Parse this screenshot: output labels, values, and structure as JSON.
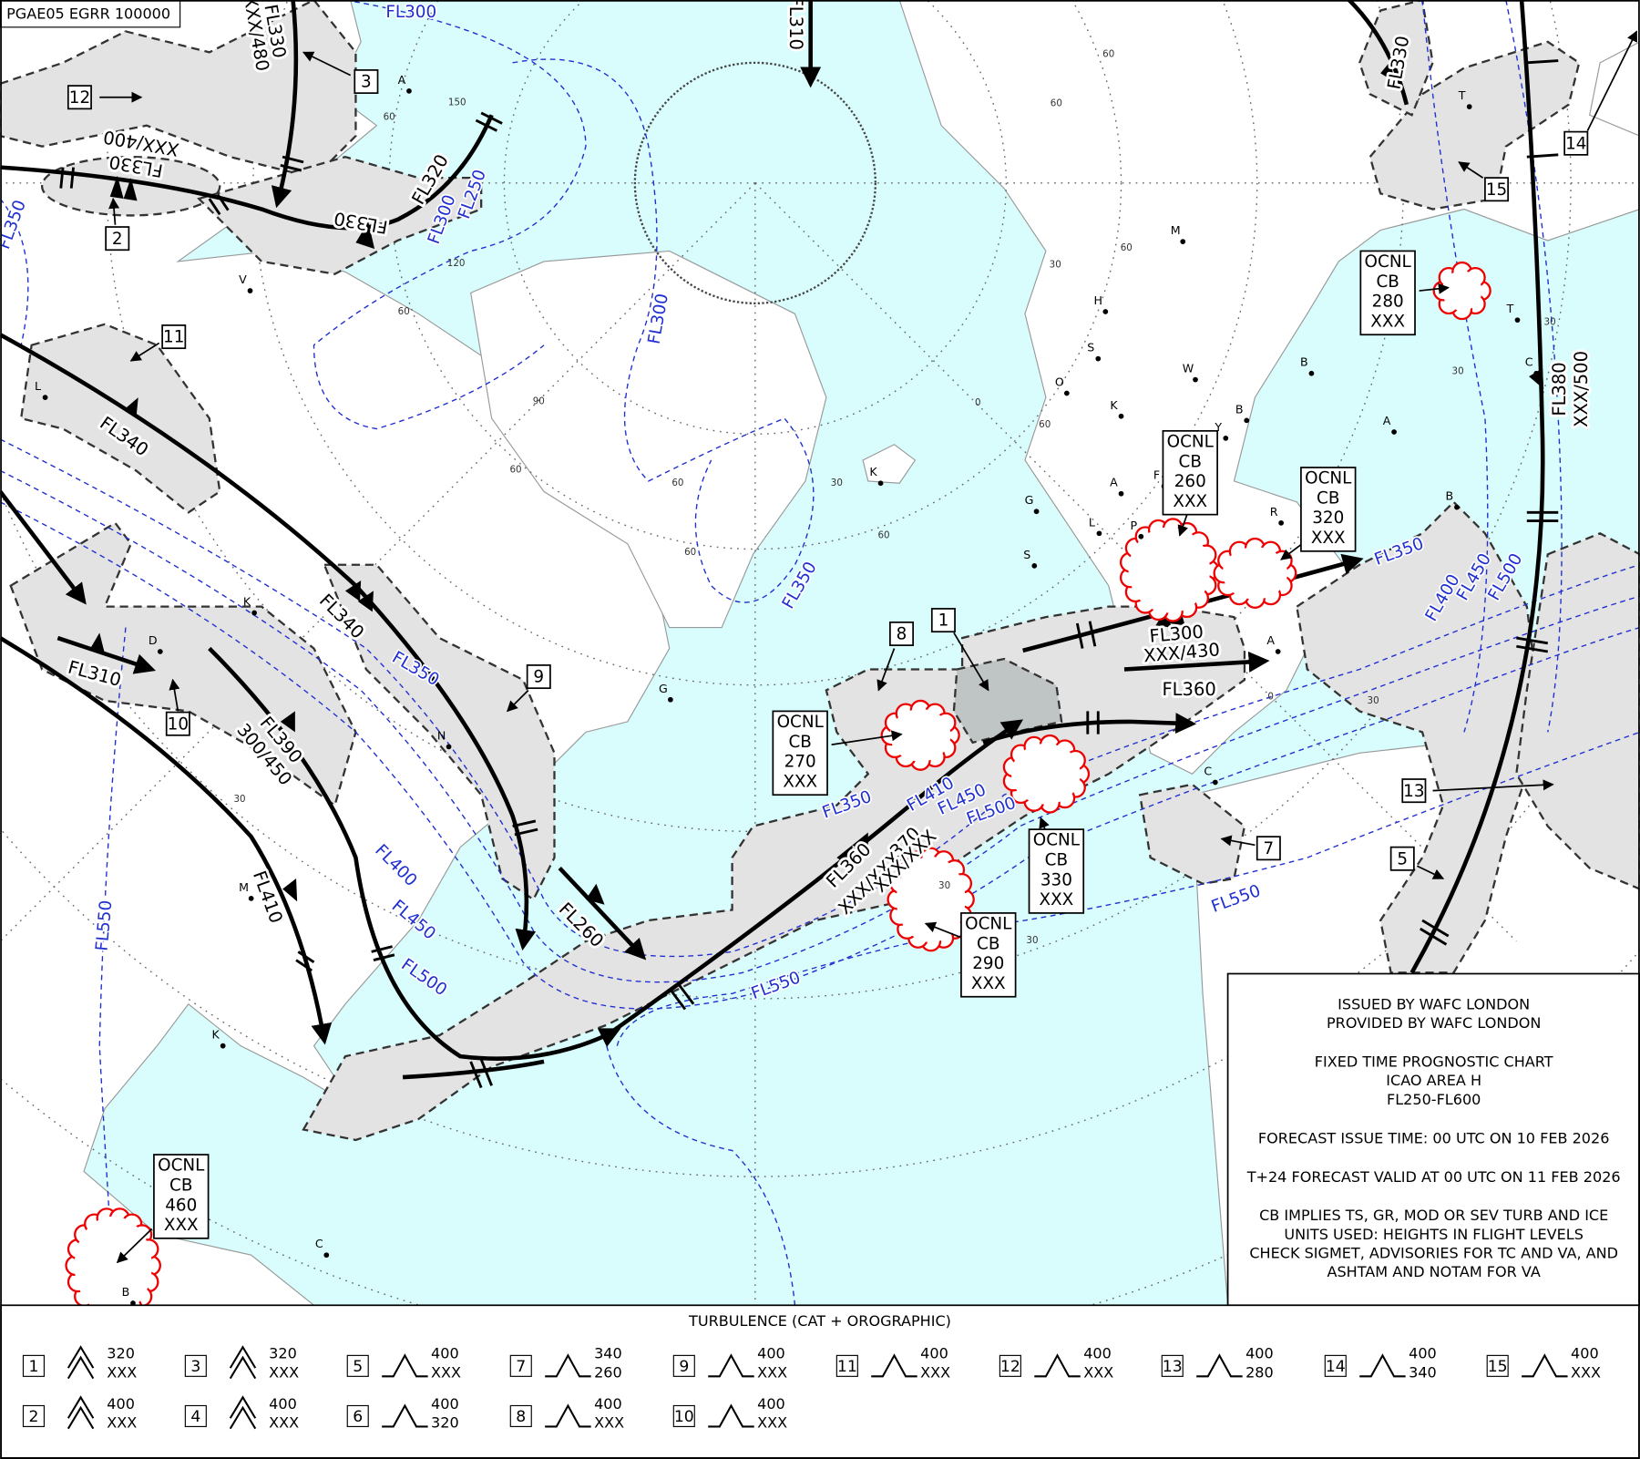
{
  "header": {
    "chart_id": "PGAE05 EGRR 100000"
  },
  "jet_labels": [
    "FL330",
    "XXX/480",
    "FL310",
    "FL330",
    "FL330",
    "XXX/400",
    "FL320",
    "FL330",
    "FL340",
    "FL340",
    "FL310",
    "FL390",
    "300/450",
    "FL410",
    "FL260",
    "FL360",
    "XXX/XXX",
    "370",
    "XXX/XXX",
    "FL300",
    "XXX/430",
    "FL360",
    "FL380",
    "XXX/500"
  ],
  "contour_labels": [
    "FL300",
    "FL250",
    "FL300",
    "FL300",
    "FL350",
    "FL350",
    "FL350",
    "FL400",
    "FL450",
    "FL500",
    "FL550",
    "FL350",
    "FL410",
    "FL450",
    "FL500",
    "FL550",
    "FL350",
    "FL400",
    "FL450",
    "FL500",
    "FL550"
  ],
  "area_numbers": [
    "1",
    "2",
    "3",
    "5",
    "7",
    "8",
    "9",
    "10",
    "11",
    "12",
    "13",
    "14",
    "15"
  ],
  "cb_boxes": [
    {
      "lines": [
        "OCNL",
        "CB",
        "260",
        "XXX"
      ]
    },
    {
      "lines": [
        "OCNL",
        "CB",
        "320",
        "XXX"
      ]
    },
    {
      "lines": [
        "OCNL",
        "CB",
        "280",
        "XXX"
      ]
    },
    {
      "lines": [
        "OCNL",
        "CB",
        "270",
        "XXX"
      ]
    },
    {
      "lines": [
        "OCNL",
        "CB",
        "330",
        "XXX"
      ]
    },
    {
      "lines": [
        "OCNL",
        "CB",
        "290",
        "XXX"
      ]
    },
    {
      "lines": [
        "OCNL",
        "CB",
        "460",
        "XXX"
      ]
    }
  ],
  "stations": [
    "A",
    "V",
    "L",
    "K",
    "D",
    "N",
    "G",
    "M",
    "K",
    "C",
    "B",
    "K",
    "M",
    "H",
    "S",
    "O",
    "W",
    "K",
    "B",
    "Y",
    "A",
    "F",
    "G",
    "L",
    "P",
    "S",
    "R",
    "A",
    "C",
    "B",
    "T",
    "A",
    "B",
    "T",
    "C"
  ],
  "grid_labels": [
    "150",
    "60",
    "120",
    "60",
    "90",
    "60",
    "60",
    "60",
    "30",
    "60",
    "0",
    "30",
    "60",
    "60",
    "60",
    "60",
    "30",
    "30",
    "0",
    "30",
    "30",
    "30",
    "30"
  ],
  "info_box": {
    "paragraphs": [
      [
        "ISSUED BY WAFC LONDON",
        "PROVIDED BY WAFC LONDON"
      ],
      [
        "FIXED TIME PROGNOSTIC CHART",
        "ICAO AREA H",
        "FL250-FL600"
      ],
      [
        "FORECAST ISSUE TIME: 00 UTC ON 10 FEB 2026"
      ],
      [
        "T+24 FORECAST VALID AT 00 UTC ON 11 FEB 2026"
      ],
      [
        "CB IMPLIES TS, GR, MOD OR SEV TURB AND ICE",
        "UNITS USED: HEIGHTS IN FLIGHT LEVELS",
        "CHECK SIGMET, ADVISORIES FOR TC AND VA, AND",
        "ASHTAM AND NOTAM FOR VA"
      ]
    ]
  },
  "legend": {
    "title": "TURBULENCE (CAT + OROGRAPHIC)",
    "items": [
      {
        "number": "1",
        "symbol": "severe",
        "top": "320",
        "base": "XXX"
      },
      {
        "number": "2",
        "symbol": "severe",
        "top": "400",
        "base": "XXX"
      },
      {
        "number": "3",
        "symbol": "severe",
        "top": "320",
        "base": "XXX"
      },
      {
        "number": "4",
        "symbol": "severe",
        "top": "400",
        "base": "XXX"
      },
      {
        "number": "5",
        "symbol": "moderate",
        "top": "400",
        "base": "XXX"
      },
      {
        "number": "6",
        "symbol": "moderate",
        "top": "400",
        "base": "320"
      },
      {
        "number": "7",
        "symbol": "moderate",
        "top": "340",
        "base": "260"
      },
      {
        "number": "8",
        "symbol": "moderate",
        "top": "400",
        "base": "XXX"
      },
      {
        "number": "9",
        "symbol": "moderate",
        "top": "400",
        "base": "XXX"
      },
      {
        "number": "10",
        "symbol": "moderate",
        "top": "400",
        "base": "XXX"
      },
      {
        "number": "11",
        "symbol": "moderate",
        "top": "400",
        "base": "XXX"
      },
      {
        "number": "12",
        "symbol": "moderate",
        "top": "400",
        "base": "XXX"
      },
      {
        "number": "13",
        "symbol": "moderate",
        "top": "400",
        "base": "280"
      },
      {
        "number": "14",
        "symbol": "moderate",
        "top": "400",
        "base": "340"
      },
      {
        "number": "15",
        "symbol": "moderate",
        "top": "400",
        "base": "XXX"
      }
    ]
  }
}
